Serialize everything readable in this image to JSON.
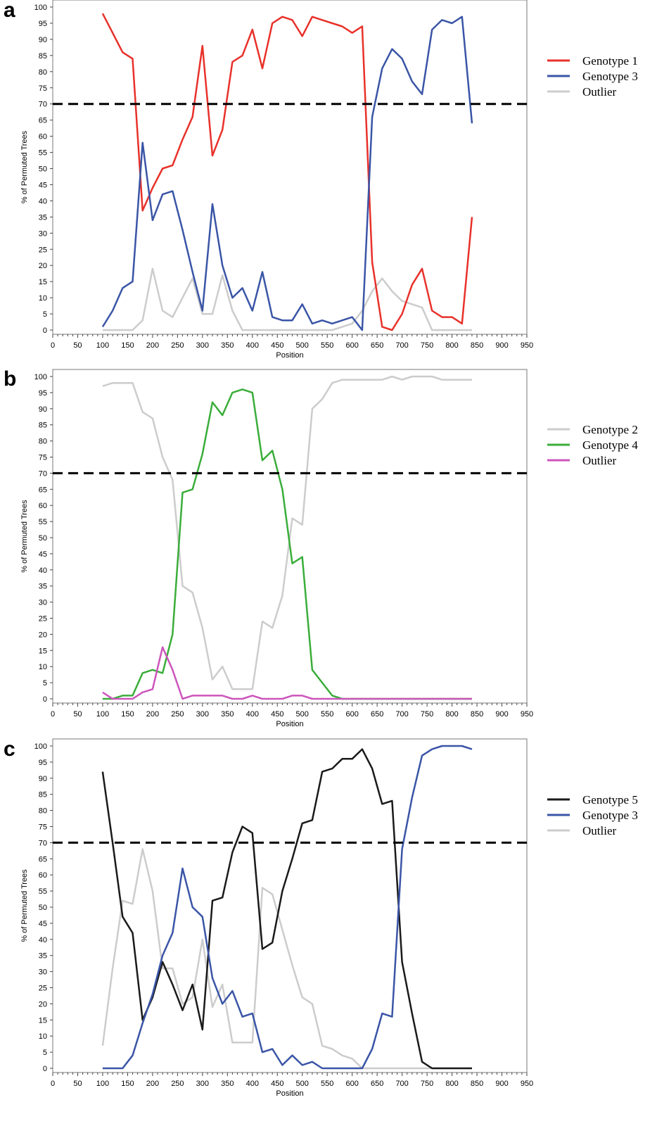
{
  "chart_data": [
    {
      "type": "line",
      "panel_label": "a",
      "xlabel": "Position",
      "ylabel": "% of Permuted Trees",
      "xlim": [
        0,
        950
      ],
      "ylim": [
        0,
        100
      ],
      "xticks": [
        0,
        50,
        100,
        150,
        200,
        250,
        300,
        350,
        400,
        450,
        500,
        550,
        600,
        650,
        700,
        750,
        800,
        850,
        900,
        950
      ],
      "yticks": [
        0,
        5,
        10,
        15,
        20,
        25,
        30,
        35,
        40,
        45,
        50,
        55,
        60,
        65,
        70,
        75,
        80,
        85,
        90,
        95,
        100
      ],
      "threshold": 70,
      "legend_position": "right",
      "grid": false,
      "series": [
        {
          "name": "Genotype 1",
          "color": "#e8312a",
          "x": [
            100,
            120,
            140,
            160,
            180,
            200,
            220,
            240,
            260,
            280,
            300,
            320,
            340,
            360,
            380,
            400,
            420,
            440,
            460,
            480,
            500,
            520,
            540,
            560,
            580,
            600,
            620,
            640,
            660,
            680,
            700,
            720,
            740,
            760,
            780,
            800,
            820,
            840
          ],
          "y": [
            98,
            92,
            86,
            84,
            37,
            44,
            50,
            51,
            59,
            66,
            88,
            54,
            62,
            83,
            85,
            93,
            81,
            95,
            97,
            96,
            91,
            97,
            96,
            95,
            94,
            92,
            94,
            21,
            1,
            0,
            5,
            14,
            19,
            6,
            4,
            4,
            2,
            35
          ]
        },
        {
          "name": "Genotype 3",
          "color": "#3a55a6",
          "x": [
            100,
            120,
            140,
            160,
            180,
            200,
            220,
            240,
            260,
            280,
            300,
            320,
            340,
            360,
            380,
            400,
            420,
            440,
            460,
            480,
            500,
            520,
            540,
            560,
            580,
            600,
            620,
            640,
            660,
            680,
            700,
            720,
            740,
            760,
            780,
            800,
            820,
            840
          ],
          "y": [
            1,
            6,
            13,
            15,
            58,
            34,
            42,
            43,
            31,
            18,
            6,
            39,
            20,
            10,
            13,
            6,
            18,
            4,
            3,
            3,
            8,
            2,
            3,
            2,
            3,
            4,
            0,
            66,
            81,
            87,
            84,
            77,
            73,
            93,
            96,
            95,
            97,
            64
          ]
        },
        {
          "name": "Outlier",
          "color": "#cccccc",
          "x": [
            100,
            120,
            140,
            160,
            180,
            200,
            220,
            240,
            260,
            280,
            300,
            320,
            340,
            360,
            380,
            400,
            420,
            440,
            460,
            480,
            500,
            520,
            540,
            560,
            580,
            600,
            620,
            640,
            660,
            680,
            700,
            720,
            740,
            760,
            780,
            800,
            820,
            840
          ],
          "y": [
            0,
            0,
            0,
            0,
            3,
            19,
            6,
            4,
            10,
            16,
            5,
            5,
            17,
            6,
            0,
            0,
            0,
            0,
            0,
            0,
            0,
            0,
            0,
            0,
            1,
            2,
            6,
            12,
            16,
            12,
            9,
            8,
            7,
            0,
            0,
            0,
            0,
            0
          ]
        }
      ]
    },
    {
      "type": "line",
      "panel_label": "b",
      "xlabel": "Position",
      "ylabel": "% of Permuted Trees",
      "xlim": [
        0,
        950
      ],
      "ylim": [
        0,
        100
      ],
      "xticks": [
        0,
        50,
        100,
        150,
        200,
        250,
        300,
        350,
        400,
        450,
        500,
        550,
        600,
        650,
        700,
        750,
        800,
        850,
        900,
        950
      ],
      "yticks": [
        0,
        5,
        10,
        15,
        20,
        25,
        30,
        35,
        40,
        45,
        50,
        55,
        60,
        65,
        70,
        75,
        80,
        85,
        90,
        95,
        100
      ],
      "threshold": 70,
      "legend_position": "right",
      "grid": false,
      "series": [
        {
          "name": "Genotype 2",
          "color": "#cccccc",
          "x": [
            100,
            120,
            140,
            160,
            180,
            200,
            220,
            240,
            260,
            280,
            300,
            320,
            340,
            360,
            380,
            400,
            420,
            440,
            460,
            480,
            500,
            520,
            540,
            560,
            580,
            600,
            620,
            640,
            660,
            680,
            700,
            720,
            740,
            760,
            780,
            800,
            820,
            840
          ],
          "y": [
            97,
            98,
            98,
            98,
            89,
            87,
            75,
            68,
            35,
            33,
            22,
            6,
            10,
            3,
            3,
            3,
            24,
            22,
            32,
            56,
            54,
            90,
            93,
            98,
            99,
            99,
            99,
            99,
            99,
            100,
            99,
            100,
            100,
            100,
            99,
            99,
            99,
            99
          ]
        },
        {
          "name": "Genotype 4",
          "color": "#3aad3a",
          "x": [
            100,
            120,
            140,
            160,
            180,
            200,
            220,
            240,
            260,
            280,
            300,
            320,
            340,
            360,
            380,
            400,
            420,
            440,
            460,
            480,
            500,
            520,
            540,
            560,
            580,
            600,
            620,
            640,
            660,
            680,
            700,
            720,
            740,
            760,
            780,
            800,
            820,
            840
          ],
          "y": [
            0,
            0,
            1,
            1,
            8,
            9,
            8,
            20,
            64,
            65,
            76,
            92,
            88,
            95,
            96,
            95,
            74,
            77,
            65,
            42,
            44,
            9,
            5,
            1,
            0,
            0,
            0,
            0,
            0,
            0,
            0,
            0,
            0,
            0,
            0,
            0,
            0,
            0
          ]
        },
        {
          "name": "Outlier",
          "color": "#cc55bb",
          "x": [
            100,
            120,
            140,
            160,
            180,
            200,
            220,
            240,
            260,
            280,
            300,
            320,
            340,
            360,
            380,
            400,
            420,
            440,
            460,
            480,
            500,
            520,
            540,
            560,
            580,
            600,
            620,
            640,
            660,
            680,
            700,
            720,
            740,
            760,
            780,
            800,
            820,
            840
          ],
          "y": [
            2,
            0,
            0,
            0,
            2,
            3,
            16,
            9,
            0,
            1,
            1,
            1,
            1,
            0,
            0,
            1,
            0,
            0,
            0,
            1,
            1,
            0,
            0,
            0,
            0,
            0,
            0,
            0,
            0,
            0,
            0,
            0,
            0,
            0,
            0,
            0,
            0,
            0
          ]
        }
      ]
    },
    {
      "type": "line",
      "panel_label": "c",
      "xlabel": "Position",
      "ylabel": "% of Permuted Trees",
      "xlim": [
        0,
        950
      ],
      "ylim": [
        0,
        100
      ],
      "xticks": [
        0,
        50,
        100,
        150,
        200,
        250,
        300,
        350,
        400,
        450,
        500,
        550,
        600,
        650,
        700,
        750,
        800,
        850,
        900,
        950
      ],
      "yticks": [
        0,
        5,
        10,
        15,
        20,
        25,
        30,
        35,
        40,
        45,
        50,
        55,
        60,
        65,
        70,
        75,
        80,
        85,
        90,
        95,
        100
      ],
      "threshold": 70,
      "legend_position": "right",
      "grid": false,
      "series": [
        {
          "name": "Genotype 5",
          "color": "#1a1a1a",
          "x": [
            100,
            120,
            140,
            160,
            180,
            200,
            220,
            240,
            260,
            280,
            300,
            320,
            340,
            360,
            380,
            400,
            420,
            440,
            460,
            480,
            500,
            520,
            540,
            560,
            580,
            600,
            620,
            640,
            660,
            680,
            700,
            720,
            740,
            760,
            780,
            800,
            820,
            840
          ],
          "y": [
            92,
            70,
            47,
            42,
            15,
            22,
            33,
            26,
            18,
            26,
            12,
            52,
            53,
            67,
            75,
            73,
            37,
            39,
            55,
            65,
            76,
            77,
            92,
            93,
            96,
            96,
            99,
            93,
            82,
            83,
            33,
            17,
            2,
            0,
            0,
            0,
            0,
            0
          ]
        },
        {
          "name": "Genotype 3",
          "color": "#3a55a6",
          "x": [
            100,
            120,
            140,
            160,
            180,
            200,
            220,
            240,
            260,
            280,
            300,
            320,
            340,
            360,
            380,
            400,
            420,
            440,
            460,
            480,
            500,
            520,
            540,
            560,
            580,
            600,
            620,
            640,
            660,
            680,
            700,
            720,
            740,
            760,
            780,
            800,
            820,
            840
          ],
          "y": [
            0,
            0,
            0,
            4,
            14,
            23,
            35,
            42,
            62,
            50,
            47,
            28,
            20,
            24,
            16,
            17,
            5,
            6,
            1,
            4,
            1,
            2,
            0,
            0,
            0,
            0,
            0,
            6,
            17,
            16,
            68,
            84,
            97,
            99,
            100,
            100,
            100,
            99
          ]
        },
        {
          "name": "Outlier",
          "color": "#cccccc",
          "x": [
            100,
            120,
            140,
            160,
            180,
            200,
            220,
            240,
            260,
            280,
            300,
            320,
            340,
            360,
            380,
            400,
            420,
            440,
            460,
            480,
            500,
            520,
            540,
            560,
            580,
            600,
            620,
            640,
            660,
            680,
            700,
            720,
            740,
            760,
            780,
            800,
            820,
            840
          ],
          "y": [
            7,
            31,
            52,
            51,
            68,
            55,
            31,
            31,
            20,
            22,
            40,
            19,
            26,
            8,
            8,
            8,
            56,
            54,
            43,
            32,
            22,
            20,
            7,
            6,
            4,
            3,
            0,
            0,
            0,
            0,
            0,
            0,
            0,
            0,
            0,
            0,
            0,
            0
          ]
        }
      ]
    }
  ]
}
